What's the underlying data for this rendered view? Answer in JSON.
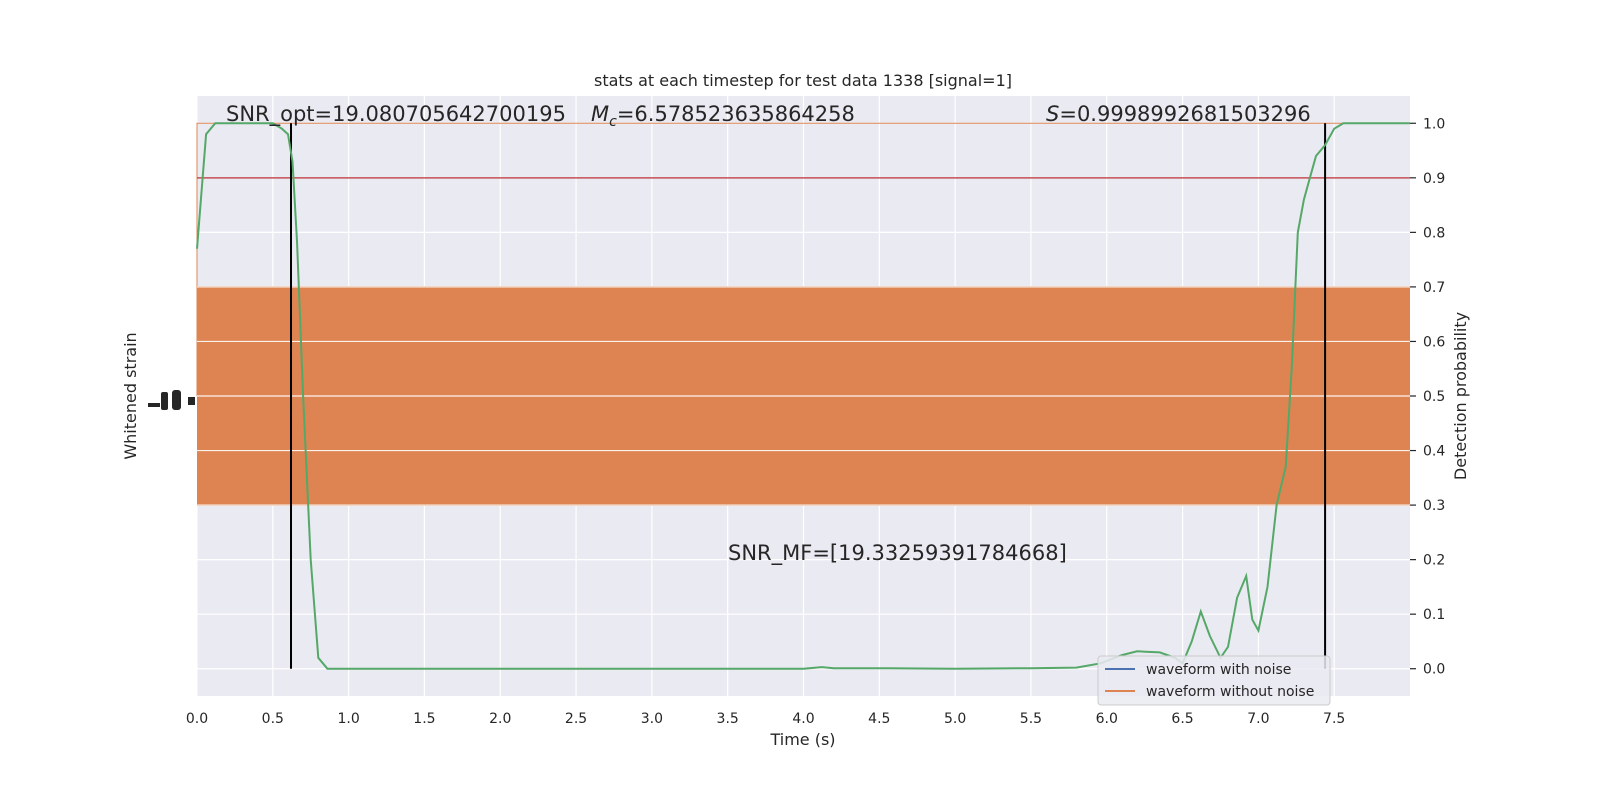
{
  "chart_data": {
    "type": "line",
    "title": "stats at each timestep for test data 1338 [signal=1]",
    "xlabel": "Time (s)",
    "ylabel": "Whitened strain",
    "y2label": "Detection probability",
    "xlim": [
      0.0,
      8.0
    ],
    "y2lim": [
      -0.05,
      1.05
    ],
    "x_ticks": [
      "0.0",
      "0.5",
      "1.0",
      "1.5",
      "2.0",
      "2.5",
      "3.0",
      "3.5",
      "4.0",
      "4.5",
      "5.0",
      "5.5",
      "6.0",
      "6.5",
      "7.0",
      "7.5"
    ],
    "y2_ticks": [
      "0.0",
      "0.1",
      "0.2",
      "0.3",
      "0.4",
      "0.5",
      "0.6",
      "0.7",
      "0.8",
      "0.9",
      "1.0"
    ],
    "grid": true,
    "annotations": {
      "snr_opt": "SNR_opt=19.080705642700195",
      "mc_symbol": "M",
      "mc_sub": "c",
      "mc_value": "=6.578523635864258",
      "s_symbol": "S",
      "s_value": "=0.9998992681503296",
      "snr_mf": "SNR_MF=[19.33259391784668]"
    },
    "vertical_lines_x": [
      0.62,
      7.44
    ],
    "threshold_y": 0.9,
    "series": [
      {
        "name": "waveform with noise",
        "color": "#4c72b0"
      },
      {
        "name": "waveform without noise",
        "color": "#dd8452"
      },
      {
        "name": "",
        "color": "#55a868",
        "x": [
          0.0,
          0.06,
          0.12,
          0.2,
          0.3,
          0.4,
          0.5,
          0.56,
          0.6,
          0.63,
          0.66,
          0.7,
          0.75,
          0.8,
          0.86,
          0.9,
          1.0,
          1.5,
          2.0,
          2.5,
          3.0,
          3.5,
          4.0,
          4.12,
          4.2,
          4.5,
          5.0,
          5.5,
          5.8,
          5.96,
          6.1,
          6.2,
          6.35,
          6.45,
          6.5,
          6.56,
          6.62,
          6.68,
          6.75,
          6.8,
          6.86,
          6.92,
          6.96,
          7.0,
          7.06,
          7.12,
          7.18,
          7.22,
          7.26,
          7.3,
          7.34,
          7.38,
          7.44,
          7.5,
          7.56,
          7.62,
          7.68,
          7.75,
          8.0
        ],
        "y": [
          0.77,
          0.98,
          1.0,
          1.0,
          1.0,
          1.0,
          1.0,
          0.99,
          0.98,
          0.93,
          0.78,
          0.5,
          0.2,
          0.02,
          0.0,
          0.0,
          0.0,
          0.0,
          0.0,
          0.0,
          0.0,
          0.0,
          0.0,
          0.003,
          0.001,
          0.001,
          0.0,
          0.001,
          0.002,
          0.01,
          0.025,
          0.032,
          0.03,
          0.02,
          0.01,
          0.05,
          0.105,
          0.06,
          0.02,
          0.04,
          0.13,
          0.17,
          0.09,
          0.07,
          0.15,
          0.3,
          0.37,
          0.55,
          0.8,
          0.86,
          0.9,
          0.94,
          0.96,
          0.99,
          1.0,
          1.0,
          1.0,
          1.0,
          1.0
        ]
      }
    ]
  },
  "legend": {
    "placement": "lower-right",
    "items": [
      "waveform with noise",
      "waveform without noise"
    ]
  },
  "colors": {
    "background": "#eaeaf2",
    "grid": "#ffffff",
    "noise": "#dd8452",
    "probability": "#55a868",
    "threshold": "#c44e52",
    "vline": "#000000",
    "text": "#262626"
  }
}
